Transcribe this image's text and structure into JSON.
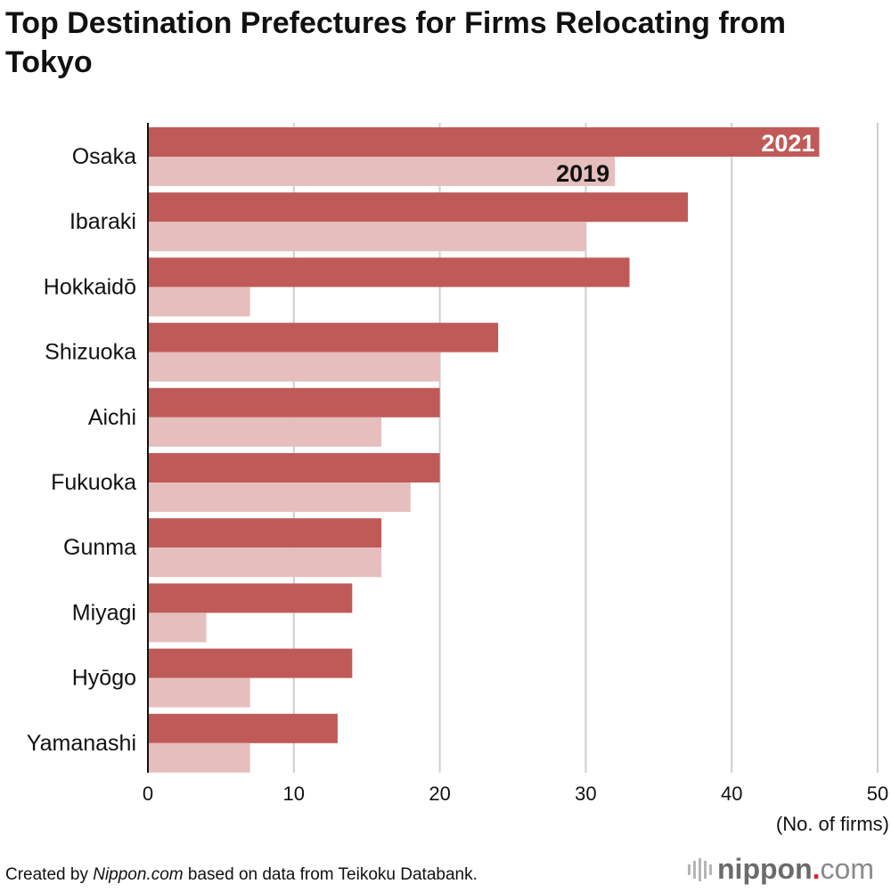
{
  "chart_data": {
    "type": "bar",
    "orientation": "horizontal",
    "title": "Top Destination Prefectures for Firms Relocating from Tokyo",
    "categories": [
      "Osaka",
      "Ibaraki",
      "Hokkaidō",
      "Shizuoka",
      "Aichi",
      "Fukuoka",
      "Gunma",
      "Miyagi",
      "Hyōgo",
      "Yamanashi"
    ],
    "series": [
      {
        "name": "2021",
        "color": "#c05a58",
        "values": [
          46,
          37,
          33,
          24,
          20,
          20,
          16,
          14,
          14,
          13
        ]
      },
      {
        "name": "2019",
        "color": "#e6bebe",
        "values": [
          32,
          30,
          7,
          20,
          16,
          18,
          16,
          4,
          7,
          7
        ]
      }
    ],
    "xlabel": "(No. of firms)",
    "xlim": [
      0,
      50
    ],
    "xticks": [
      "0",
      "10",
      "20",
      "30",
      "40",
      "50"
    ],
    "grid": true,
    "legend": "inline labels on first category bars"
  },
  "footer": {
    "source_prefix": "Created by ",
    "source_brand": "Nippon.com",
    "source_suffix": " based on data from Teikoku Databank.",
    "logo": {
      "name": "nippon",
      "dot": ".",
      "com": "com"
    }
  }
}
